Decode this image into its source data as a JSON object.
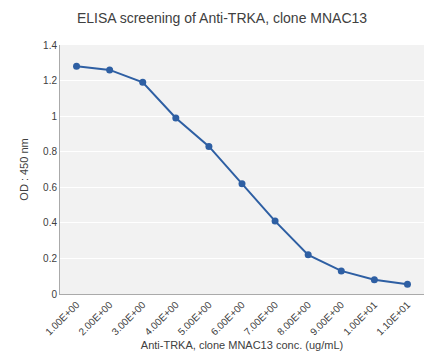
{
  "chart_data": {
    "type": "line",
    "title": "ELISA screening of Anti-TRKA, clone MNAC13",
    "xlabel": "Anti-TRKA, clone MNAC13 conc. (ug/mL)",
    "ylabel": "OD : 450 nm",
    "x": [
      1,
      2,
      3,
      4,
      5,
      6,
      7,
      8,
      9,
      10,
      11
    ],
    "values": [
      1.28,
      1.26,
      1.19,
      0.99,
      0.83,
      0.62,
      0.41,
      0.22,
      0.13,
      0.08,
      0.055
    ],
    "color": "#2e5fa3",
    "marker": "circle",
    "xlim": [
      0.5,
      11.5
    ],
    "xticks": [
      {
        "value": 1,
        "label": "1.00E+00"
      },
      {
        "value": 2,
        "label": "2.00E+00"
      },
      {
        "value": 3,
        "label": "3.00E+00"
      },
      {
        "value": 4,
        "label": "4.00E+00"
      },
      {
        "value": 5,
        "label": "5.00E+00"
      },
      {
        "value": 6,
        "label": "6.00E+00"
      },
      {
        "value": 7,
        "label": "7.00E+00"
      },
      {
        "value": 8,
        "label": "8.00E+00"
      },
      {
        "value": 9,
        "label": "9.00E+00"
      },
      {
        "value": 10,
        "label": "1.00E+01"
      },
      {
        "value": 11,
        "label": "1.10E+01"
      }
    ],
    "ylim": [
      0,
      1.4
    ],
    "yticks": [
      0,
      0.2,
      0.4,
      0.6,
      0.8,
      1,
      1.2,
      1.4
    ],
    "grid": true
  }
}
